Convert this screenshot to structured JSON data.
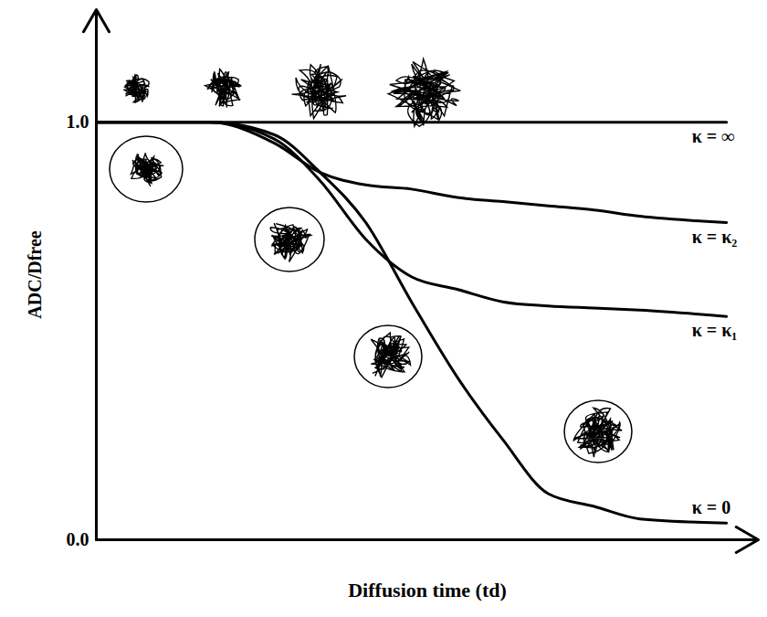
{
  "chart_data": {
    "type": "line",
    "x_label": "Diffusion time (td)",
    "y_label": "ADC/Dfree",
    "x": [
      0,
      1.72,
      2.69,
      3.38,
      4.07,
      4.76,
      5.45,
      6.14,
      6.83,
      7.52,
      8.21,
      9.52
    ],
    "series": [
      {
        "name": "κ = ∞",
        "color": "#000000",
        "values": [
          1,
          1,
          1,
          1,
          1,
          1,
          1,
          1,
          1,
          1,
          1,
          1
        ]
      },
      {
        "name": "κ = κ₂",
        "color": "#000000",
        "values": [
          1,
          1,
          0.95,
          0.88,
          0.85,
          0.84,
          0.82,
          0.81,
          0.8,
          0.79,
          0.775,
          0.76
        ]
      },
      {
        "name": "κ = κ₁",
        "color": "#000000",
        "values": [
          1,
          1,
          0.96,
          0.86,
          0.72,
          0.63,
          0.6,
          0.57,
          0.56,
          0.555,
          0.55,
          0.535
        ]
      },
      {
        "name": "κ = 0",
        "color": "#000000",
        "values": [
          1,
          1,
          0.97,
          0.88,
          0.76,
          0.57,
          0.39,
          0.24,
          0.11,
          0.08,
          0.05,
          0.04
        ]
      }
    ],
    "xlim": [
      0,
      10
    ],
    "ylim": [
      0,
      1.27
    ],
    "xticks": [],
    "yticks": [
      {
        "value": 0,
        "label": "0.0"
      },
      {
        "value": 1,
        "label": "1.0"
      }
    ],
    "tick_labels": "y",
    "grid": false
  }
}
